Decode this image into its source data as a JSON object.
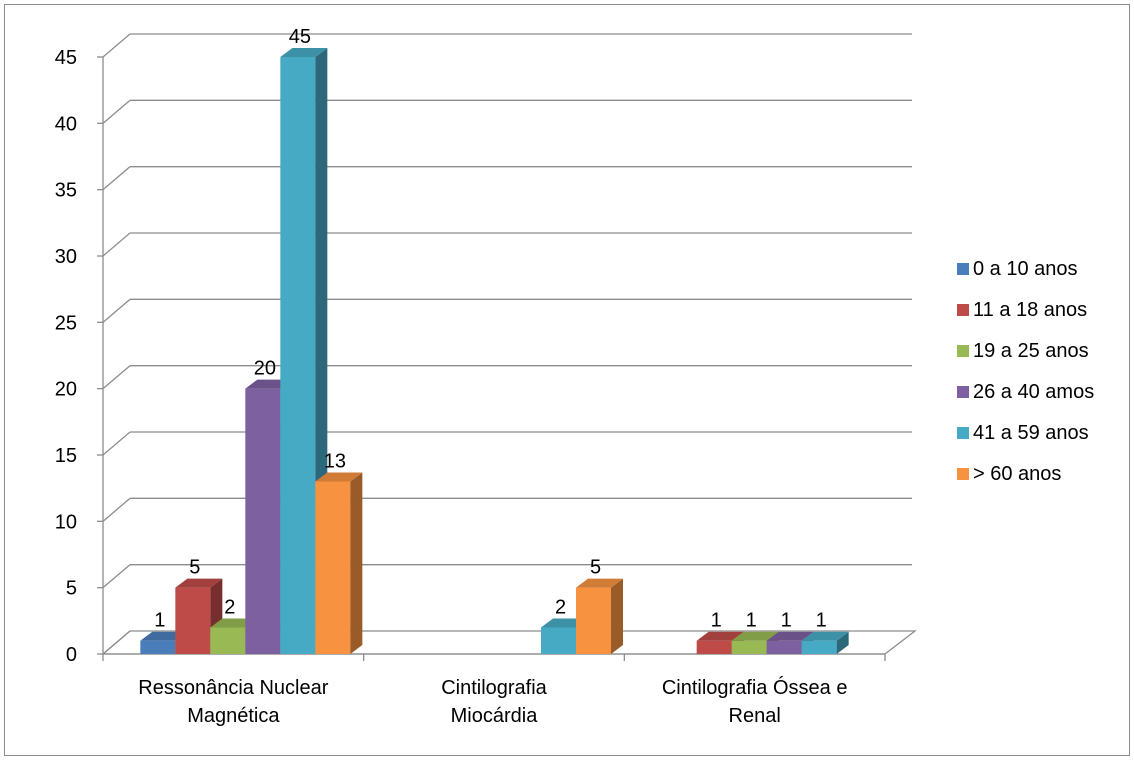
{
  "chart_data": {
    "type": "bar",
    "subtype": "3d-clustered-column",
    "title": "",
    "xlabel": "",
    "ylabel": "",
    "ylim": [
      0,
      45
    ],
    "ytick_step": 5,
    "yticks": [
      "0",
      "5",
      "10",
      "15",
      "20",
      "25",
      "30",
      "35",
      "40",
      "45"
    ],
    "grid": true,
    "legend_position": "right",
    "categories": [
      [
        "Ressonância Nuclear",
        "Magnética"
      ],
      [
        "Cintilografia",
        "Miocárdia"
      ],
      [
        "Cintilografia Óssea e",
        "Renal"
      ]
    ],
    "series": [
      {
        "name": "0 a 10 anos",
        "color": "#4a7ebb",
        "values": [
          1,
          null,
          null
        ]
      },
      {
        "name": "11 a 18 anos",
        "color": "#be4b48",
        "values": [
          5,
          null,
          1
        ]
      },
      {
        "name": "19 a 25 anos",
        "color": "#98b954",
        "values": [
          2,
          null,
          1
        ]
      },
      {
        "name": "26 a 40 amos",
        "color": "#7d60a0",
        "values": [
          20,
          null,
          1
        ]
      },
      {
        "name": "41 a 59 anos",
        "color": "#46aac5",
        "values": [
          45,
          2,
          1
        ]
      },
      {
        "name": "> 60 anos",
        "color": "#f69240",
        "values": [
          13,
          5,
          null
        ]
      }
    ]
  }
}
